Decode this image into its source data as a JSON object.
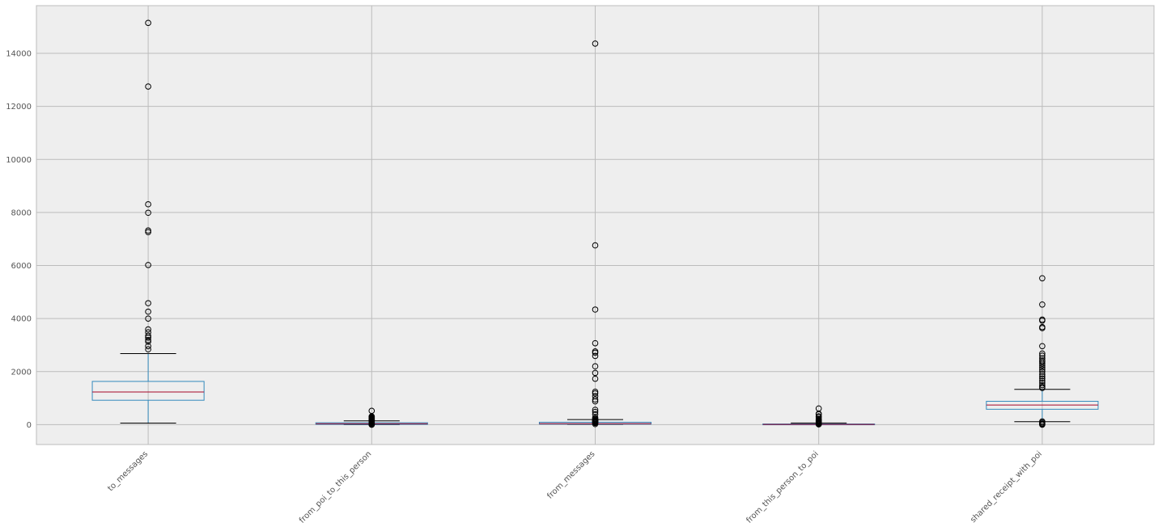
{
  "chart_data": {
    "type": "box",
    "title": "",
    "xlabel": "",
    "ylabel": "",
    "ylim": [
      -750,
      15800
    ],
    "yticks": [
      0,
      2000,
      4000,
      6000,
      8000,
      10000,
      12000,
      14000
    ],
    "ytick_labels": [
      "0",
      "2000",
      "4000",
      "6000",
      "8000",
      "10000",
      "12000",
      "14000"
    ],
    "grid": true,
    "colors": {
      "background": "#eeeeee",
      "grid": "#bcbcbc",
      "box": "#348abd",
      "median": "#a60628",
      "whisker": "#348abd",
      "cap": "#000000",
      "flier": "#000000",
      "spine": "#bcbcbc",
      "tick_text": "#555555"
    },
    "categories": [
      "to_messages",
      "from_poi_to_this_person",
      "from_messages",
      "from_this_person_to_poi",
      "shared_receipt_with_poi"
    ],
    "boxes": [
      {
        "label": "to_messages",
        "whisker_low": 57,
        "q1": 920,
        "median": 1230,
        "q3": 1630,
        "whisker_high": 2680,
        "fliers": [
          2840,
          2960,
          3130,
          3190,
          3280,
          3350,
          3480,
          3590,
          4000,
          4260,
          4580,
          6020,
          7260,
          7320,
          7990,
          8310,
          12750,
          15150
        ]
      },
      {
        "label": "from_poi_to_this_person",
        "whisker_low": 0,
        "q1": 10,
        "median": 35,
        "q3": 70,
        "whisker_high": 140,
        "fliers": [
          0,
          0,
          10,
          20,
          30,
          50,
          80,
          100,
          120,
          140,
          160,
          170,
          180,
          190,
          200,
          220,
          240,
          250,
          260,
          280,
          290,
          300,
          310,
          520
        ]
      },
      {
        "label": "from_messages",
        "whisker_low": 12,
        "q1": 20,
        "median": 40,
        "q3": 90,
        "whisker_high": 190,
        "fliers": [
          20,
          60,
          80,
          100,
          120,
          140,
          150,
          170,
          200,
          220,
          260,
          390,
          480,
          560,
          880,
          950,
          1070,
          1180,
          1240,
          1730,
          1950,
          2200,
          2590,
          2710,
          2760,
          3070,
          4340,
          6760,
          14370
        ]
      },
      {
        "label": "from_this_person_to_poi",
        "whisker_low": 0,
        "q1": 1,
        "median": 8,
        "q3": 25,
        "whisker_high": 60,
        "fliers": [
          10,
          20,
          30,
          40,
          60,
          80,
          100,
          120,
          140,
          160,
          180,
          220,
          290,
          310,
          390,
          410,
          610
        ]
      },
      {
        "label": "shared_receipt_with_poi",
        "whisker_low": 110,
        "q1": 580,
        "median": 740,
        "q3": 880,
        "whisker_high": 1330,
        "fliers": [
          0,
          20,
          40,
          80,
          120,
          1380,
          1420,
          1490,
          1570,
          1650,
          1740,
          1820,
          1900,
          2000,
          2080,
          2150,
          2230,
          2300,
          2370,
          2420,
          2500,
          2600,
          2680,
          2960,
          3640,
          3680,
          3920,
          3960,
          4530,
          5520
        ]
      }
    ]
  }
}
